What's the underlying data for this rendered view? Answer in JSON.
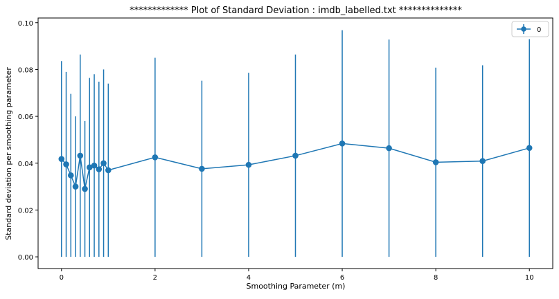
{
  "chart_data": {
    "type": "line",
    "title": "************* Plot of Standard Deviation : imdb_labelled.txt **************",
    "xlabel": "Smoothing Parameter (m)",
    "ylabel": "Standard deviation per smoothing parameter",
    "xlim": [
      -0.5,
      10.5
    ],
    "ylim": [
      -0.005,
      0.102
    ],
    "x_ticks": [
      0,
      2,
      4,
      6,
      8,
      10
    ],
    "x_tick_labels": [
      "0",
      "2",
      "4",
      "6",
      "8",
      "10"
    ],
    "y_ticks": [
      0.0,
      0.02,
      0.04,
      0.06,
      0.08,
      0.1
    ],
    "y_tick_labels": [
      "0.00",
      "0.02",
      "0.04",
      "0.06",
      "0.08",
      "0.10"
    ],
    "grid": false,
    "legend_position": "top-right",
    "series": [
      {
        "name": "0",
        "color": "#1f77b4",
        "marker": "circle",
        "x": [
          0,
          0.1,
          0.2,
          0.3,
          0.4,
          0.5,
          0.6,
          0.7,
          0.8,
          0.9,
          1,
          2,
          3,
          4,
          5,
          6,
          7,
          8,
          9,
          10
        ],
        "y": [
          0.0418,
          0.0395,
          0.0348,
          0.03,
          0.0432,
          0.029,
          0.0382,
          0.039,
          0.0374,
          0.04,
          0.037,
          0.0425,
          0.0376,
          0.0393,
          0.0432,
          0.0484,
          0.0464,
          0.0404,
          0.0409,
          0.0465
        ],
        "yerr": [
          0.0418,
          0.0395,
          0.0348,
          0.03,
          0.0432,
          0.029,
          0.0382,
          0.039,
          0.0374,
          0.04,
          0.037,
          0.0425,
          0.0376,
          0.0393,
          0.0432,
          0.0484,
          0.0464,
          0.0404,
          0.0409,
          0.0465
        ]
      }
    ]
  }
}
